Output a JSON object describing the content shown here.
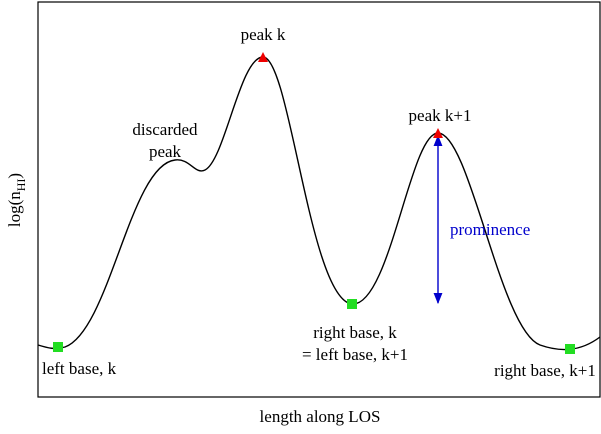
{
  "y_label": {
    "main": "log(n",
    "sub": "HI",
    "close": ")"
  },
  "x_label": "length along LOS",
  "annotations": {
    "peak_k": "peak k",
    "discarded_peak": [
      "discarded",
      "peak"
    ],
    "peak_k1": "peak k+1",
    "prominence": "prominence",
    "left_base_k": "left base, k",
    "right_base_k": [
      "right base, k",
      "= left base, k+1"
    ],
    "right_base_k1": "right base, k+1"
  }
}
